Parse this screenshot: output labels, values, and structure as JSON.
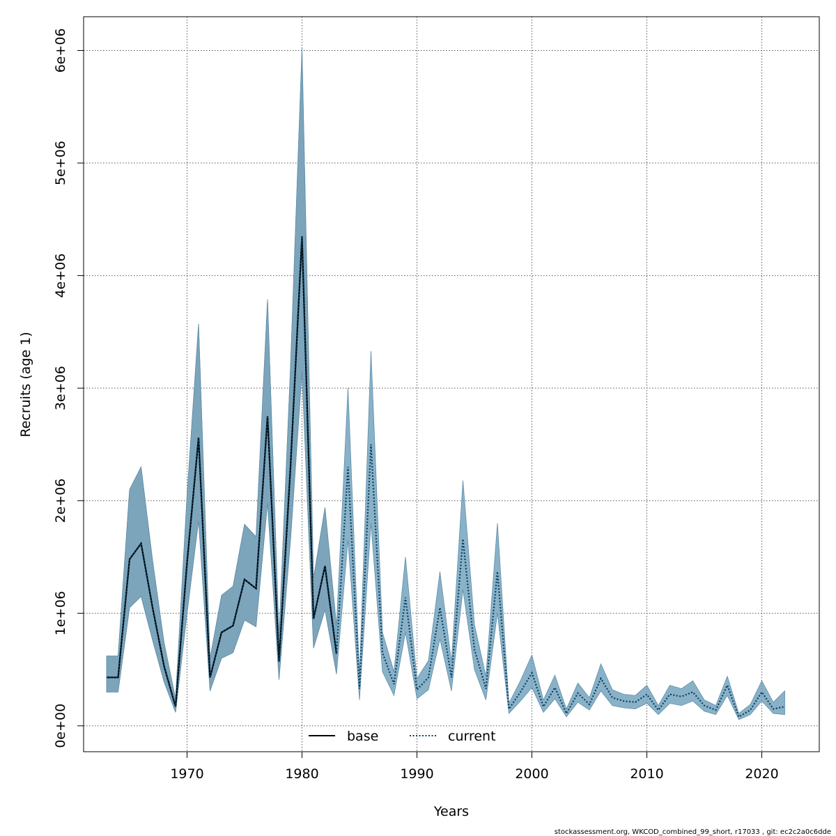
{
  "chart_data": {
    "type": "line",
    "title": "",
    "xlabel": "Years",
    "ylabel": "Recruits (age 1)",
    "xlim": [
      1961,
      2025
    ],
    "ylim": [
      -230000,
      6300000
    ],
    "x_ticks": [
      1970,
      1980,
      1990,
      2000,
      2010,
      2020
    ],
    "x_tick_labels": [
      "1970",
      "1980",
      "1990",
      "2000",
      "2010",
      "2020"
    ],
    "y_ticks": [
      0,
      1000000,
      2000000,
      3000000,
      4000000,
      5000000,
      6000000
    ],
    "y_tick_labels": [
      "0e+00",
      "1e+06",
      "2e+06",
      "3e+06",
      "4e+06",
      "5e+06",
      "6e+06"
    ],
    "grid": true,
    "legend": {
      "position": "bottom-center",
      "entries": [
        "base",
        "current"
      ]
    },
    "series": [
      {
        "name": "base",
        "line_style": "solid",
        "color": "#000000",
        "band_color": "#bdbdbd",
        "x": [
          1963,
          1964,
          1965,
          1966,
          1967,
          1968,
          1969,
          1970,
          1971,
          1972,
          1973,
          1974,
          1975,
          1976,
          1977,
          1978,
          1979,
          1980,
          1981,
          1982,
          1983
        ],
        "y": [
          430000,
          430000,
          1480000,
          1620000,
          1050000,
          530000,
          170000,
          1450000,
          2560000,
          430000,
          830000,
          890000,
          1300000,
          1220000,
          2750000,
          570000,
          2300000,
          4350000,
          950000,
          1420000,
          640000
        ],
        "lower": [
          300000,
          300000,
          1050000,
          1150000,
          760000,
          390000,
          120000,
          1000000,
          1820000,
          310000,
          600000,
          650000,
          940000,
          880000,
          1980000,
          410000,
          1650000,
          3150000,
          690000,
          1030000,
          460000
        ],
        "upper": [
          620000,
          620000,
          2100000,
          2300000,
          1470000,
          740000,
          240000,
          2050000,
          3570000,
          600000,
          1160000,
          1240000,
          1790000,
          1680000,
          3790000,
          800000,
          3190000,
          6020000,
          1310000,
          1940000,
          890000
        ]
      },
      {
        "name": "current",
        "line_style": "dotted",
        "color": "#0b3c5d",
        "band_color": "#6b9fba",
        "x": [
          1963,
          1964,
          1965,
          1966,
          1967,
          1968,
          1969,
          1970,
          1971,
          1972,
          1973,
          1974,
          1975,
          1976,
          1977,
          1978,
          1979,
          1980,
          1981,
          1982,
          1983,
          1984,
          1985,
          1986,
          1987,
          1988,
          1989,
          1990,
          1991,
          1992,
          1993,
          1994,
          1995,
          1996,
          1997,
          1998,
          1999,
          2000,
          2001,
          2002,
          2003,
          2004,
          2005,
          2006,
          2007,
          2008,
          2009,
          2010,
          2011,
          2012,
          2013,
          2014,
          2015,
          2016,
          2017,
          2018,
          2019,
          2020,
          2021,
          2022
        ],
        "y": [
          430000,
          430000,
          1480000,
          1620000,
          1050000,
          530000,
          170000,
          1450000,
          2560000,
          430000,
          830000,
          890000,
          1300000,
          1220000,
          2750000,
          570000,
          2300000,
          4350000,
          950000,
          1420000,
          640000,
          2300000,
          330000,
          2500000,
          650000,
          370000,
          1140000,
          320000,
          430000,
          1050000,
          430000,
          1660000,
          680000,
          330000,
          1370000,
          150000,
          300000,
          470000,
          170000,
          340000,
          110000,
          290000,
          190000,
          420000,
          250000,
          220000,
          210000,
          280000,
          140000,
          280000,
          260000,
          300000,
          180000,
          140000,
          360000,
          80000,
          140000,
          300000,
          150000,
          170000
        ],
        "lower": [
          300000,
          300000,
          1050000,
          1150000,
          760000,
          390000,
          120000,
          1000000,
          1820000,
          310000,
          600000,
          650000,
          940000,
          880000,
          1980000,
          410000,
          1650000,
          3150000,
          690000,
          1030000,
          460000,
          1650000,
          230000,
          1800000,
          480000,
          270000,
          830000,
          240000,
          320000,
          770000,
          310000,
          1210000,
          500000,
          230000,
          1000000,
          110000,
          220000,
          340000,
          120000,
          240000,
          80000,
          210000,
          140000,
          310000,
          180000,
          160000,
          150000,
          200000,
          100000,
          200000,
          180000,
          220000,
          130000,
          100000,
          270000,
          55000,
          100000,
          220000,
          110000,
          100000
        ],
        "upper": [
          620000,
          620000,
          2100000,
          2300000,
          1470000,
          740000,
          240000,
          2050000,
          3570000,
          600000,
          1160000,
          1240000,
          1790000,
          1680000,
          3790000,
          800000,
          3190000,
          6020000,
          1310000,
          1940000,
          890000,
          3000000,
          450000,
          3330000,
          830000,
          480000,
          1500000,
          420000,
          580000,
          1370000,
          570000,
          2180000,
          900000,
          440000,
          1800000,
          200000,
          400000,
          630000,
          230000,
          450000,
          150000,
          380000,
          250000,
          550000,
          320000,
          280000,
          270000,
          360000,
          180000,
          360000,
          330000,
          400000,
          230000,
          180000,
          440000,
          110000,
          190000,
          400000,
          210000,
          310000
        ]
      }
    ]
  },
  "footer": {
    "text": "stockassessment.org, WKCOD_combined_99_short, r17033 , git: ec2c2a0c6dde"
  }
}
